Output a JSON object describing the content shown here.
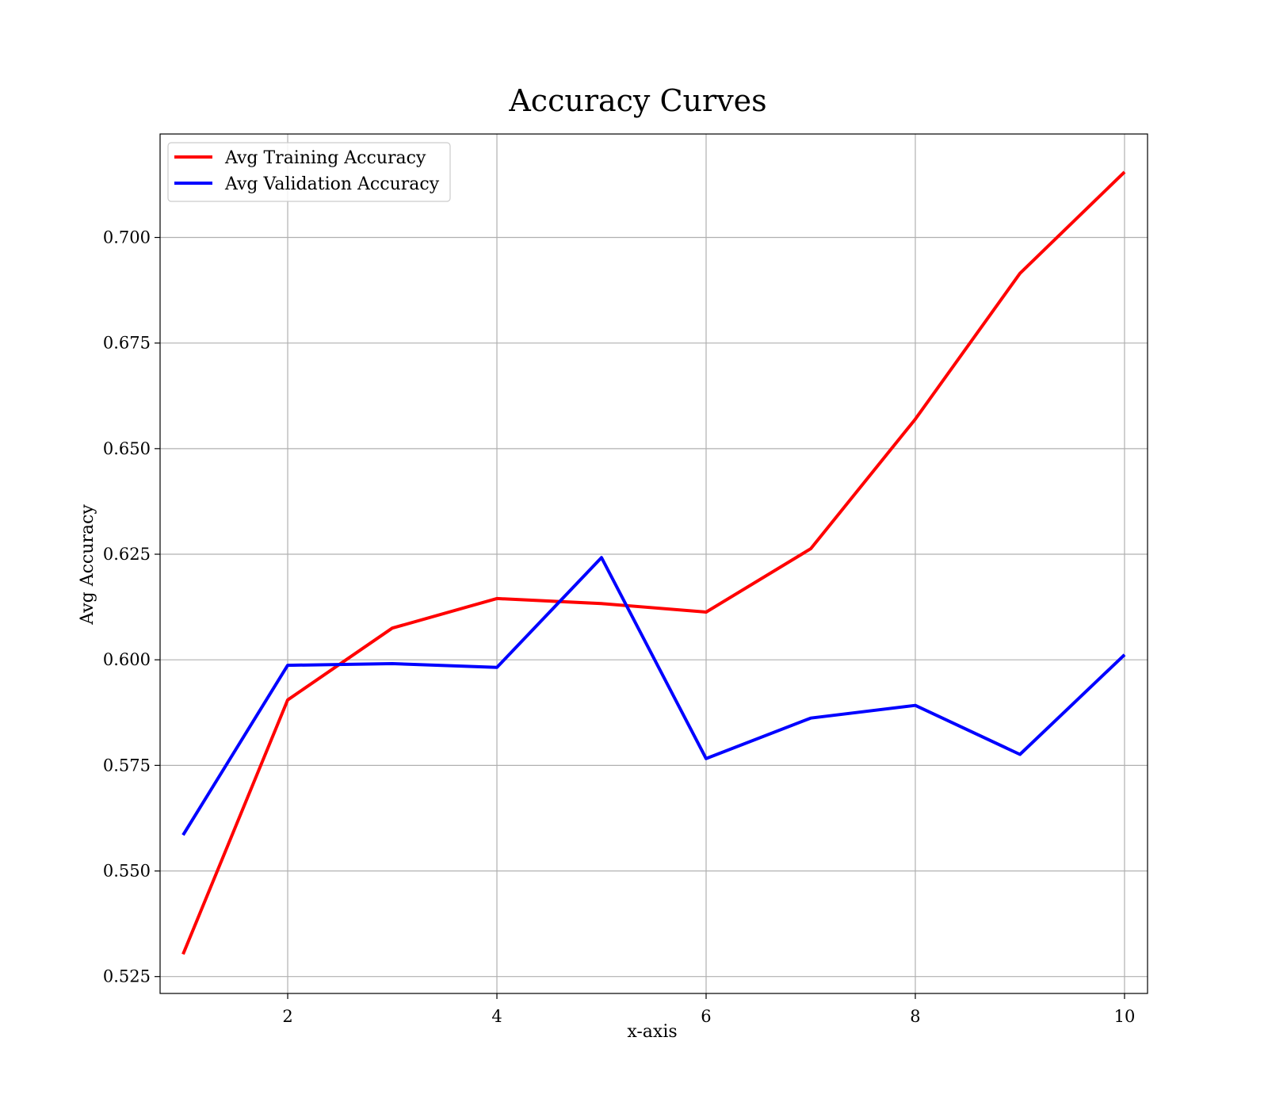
{
  "chart_data": {
    "type": "line",
    "title": "Accuracy Curves",
    "xlabel": "x-axis",
    "ylabel": "Avg Accuracy",
    "x": [
      1,
      2,
      3,
      4,
      5,
      6,
      7,
      8,
      9,
      10
    ],
    "xlim": [
      0.78,
      10.22
    ],
    "ylim": [
      0.521,
      0.7245
    ],
    "xticks": [
      2,
      4,
      6,
      8,
      10
    ],
    "xtick_labels": [
      "2",
      "4",
      "6",
      "8",
      "10"
    ],
    "yticks": [
      0.525,
      0.55,
      0.575,
      0.6,
      0.625,
      0.65,
      0.675,
      0.7
    ],
    "ytick_labels": [
      "0.525",
      "0.550",
      "0.575",
      "0.600",
      "0.625",
      "0.650",
      "0.675",
      "0.700"
    ],
    "grid": true,
    "legend_position": "top-left",
    "series": [
      {
        "name": "Avg Training Accuracy",
        "color": "#ff0000",
        "values": [
          0.5303,
          0.5905,
          0.6075,
          0.6145,
          0.6133,
          0.6113,
          0.6263,
          0.657,
          0.6915,
          0.7155
        ]
      },
      {
        "name": "Avg Validation Accuracy",
        "color": "#0000ff",
        "values": [
          0.5585,
          0.5987,
          0.5991,
          0.5982,
          0.6242,
          0.5766,
          0.5862,
          0.5892,
          0.5776,
          0.6012
        ]
      }
    ]
  }
}
